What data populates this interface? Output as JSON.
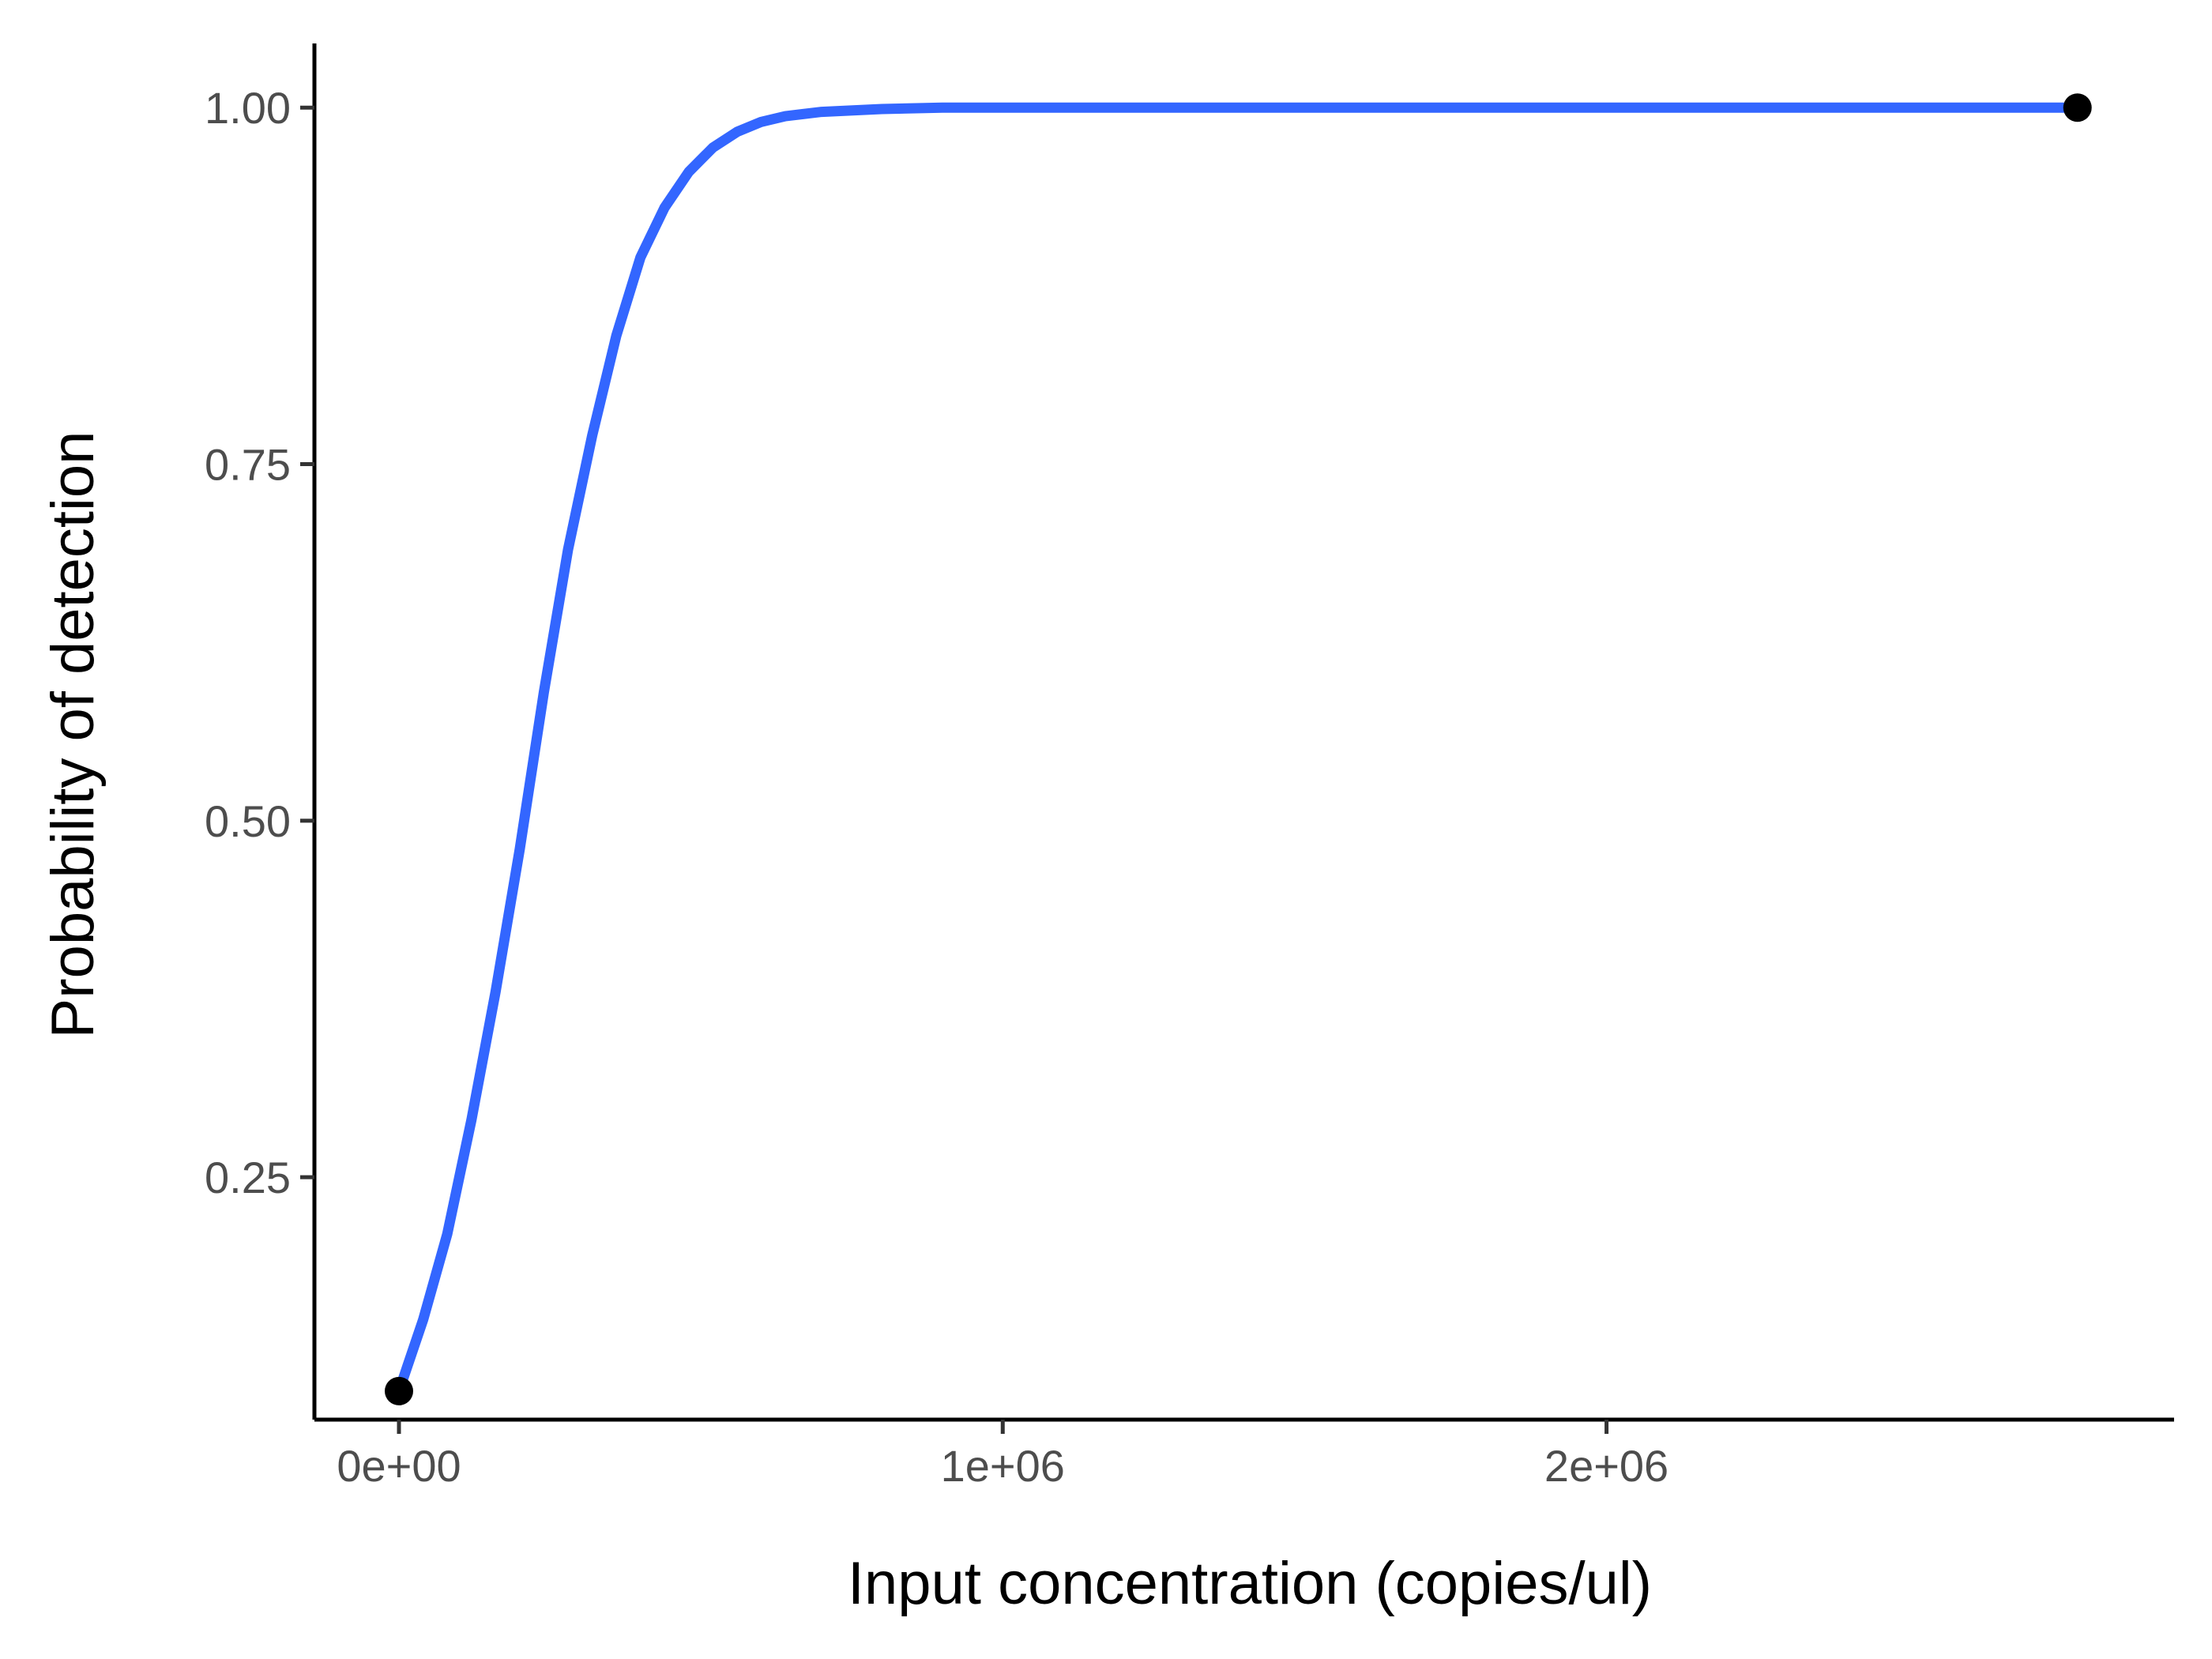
{
  "chart_data": {
    "type": "line",
    "title": "",
    "xlabel": "Input concentration (copies/ul)",
    "ylabel": "Probability of detection",
    "xlim": [
      -140000,
      2940000
    ],
    "ylim": [
      0.08,
      1.045
    ],
    "x_ticks": [
      0,
      1000000,
      2000000
    ],
    "x_tick_labels": [
      "0e+00",
      "1e+06",
      "2e+06"
    ],
    "y_ticks": [
      0.25,
      0.5,
      0.75,
      1.0
    ],
    "y_tick_labels": [
      "0.25",
      "0.50",
      "0.75",
      "1.00"
    ],
    "grid": false,
    "legend": "none",
    "series": [
      {
        "color": "#3366FF",
        "x": [
          0,
          40000,
          80000,
          120000,
          160000,
          200000,
          240000,
          280000,
          320000,
          360000,
          400000,
          440000,
          480000,
          520000,
          560000,
          600000,
          640000,
          700000,
          800000,
          900000,
          1000000,
          1500000,
          2000000,
          2500000,
          2780000
        ],
        "y": [
          0.1,
          0.15,
          0.21,
          0.29,
          0.38,
          0.48,
          0.59,
          0.69,
          0.77,
          0.84,
          0.895,
          0.93,
          0.955,
          0.972,
          0.983,
          0.99,
          0.994,
          0.997,
          0.999,
          1.0,
          1.0,
          1.0,
          1.0,
          1.0,
          1.0
        ]
      }
    ],
    "points": [
      {
        "x": 0,
        "y": 0.1,
        "color": "#000000"
      },
      {
        "x": 2780000,
        "y": 1.0,
        "color": "#000000"
      }
    ]
  }
}
